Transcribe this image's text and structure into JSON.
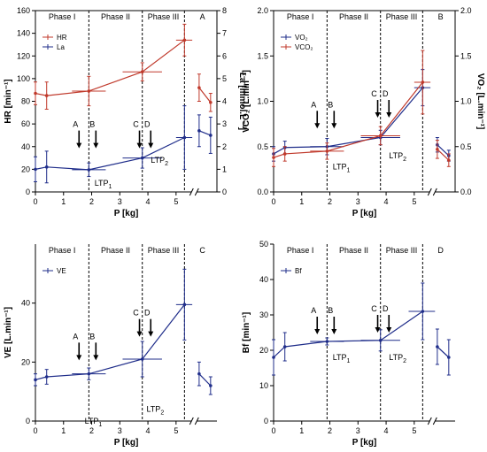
{
  "colors": {
    "blue": "#1f2d8a",
    "red": "#c0392b"
  },
  "chart_data": [
    {
      "panel": "A",
      "type": "line",
      "phases": [
        "Phase I",
        "Phase II",
        "Phase III"
      ],
      "dividers": [
        1.9,
        3.8,
        5.3
      ],
      "xlabel": "P [kg]",
      "ylabel": "HR [min⁻¹]",
      "y2label": "La [mmol.L⁻¹]",
      "xticks": [
        "0",
        "1",
        "2",
        "3",
        "4",
        "5"
      ],
      "yticks": [
        "0",
        "20",
        "40",
        "60",
        "80",
        "100",
        "120",
        "140",
        "160"
      ],
      "y2ticks": [
        "0",
        "1",
        "2",
        "3",
        "4",
        "5",
        "6",
        "7",
        "8"
      ],
      "ylim": [
        0,
        160
      ],
      "y2lim": [
        0,
        8
      ],
      "legend": [
        "HR",
        "La"
      ],
      "series": [
        {
          "name": "HR",
          "color": "red",
          "axis": "left",
          "points": [
            {
              "x": 0,
              "y": 87,
              "e": 10
            },
            {
              "x": 0.4,
              "y": 85,
              "e": 12
            },
            {
              "x": 1.9,
              "y": 89,
              "e": 13,
              "xe": 0.6
            },
            {
              "x": 3.8,
              "y": 106,
              "e": 8,
              "xe": 0.7
            },
            {
              "x": 5.3,
              "y": 134,
              "e": 14,
              "xe": 0.3
            }
          ],
          "recovery": [
            {
              "x": 5.9,
              "y": 92,
              "e": 12
            },
            {
              "x": 6.4,
              "y": 79,
              "e": 8
            }
          ]
        },
        {
          "name": "La",
          "color": "blue",
          "axis": "right",
          "points": [
            {
              "x": 0,
              "y": 1.0,
              "e": 0.55
            },
            {
              "x": 0.4,
              "y": 1.1,
              "e": 0.7
            },
            {
              "x": 1.9,
              "y": 0.98,
              "e": 0.3,
              "xe": 0.6
            },
            {
              "x": 3.8,
              "y": 1.5,
              "e": 0.45,
              "xe": 0.7
            },
            {
              "x": 5.3,
              "y": 2.4,
              "e": 1.4,
              "xe": 0.3
            }
          ],
          "recovery": [
            {
              "x": 5.9,
              "y": 2.7,
              "e": 0.7
            },
            {
              "x": 6.4,
              "y": 2.5,
              "e": 0.8
            }
          ]
        }
      ],
      "markers": [
        {
          "label": "A",
          "x": 1.55,
          "y": 37
        },
        {
          "label": "B",
          "x": 2.15,
          "y": 37
        },
        {
          "label": "C",
          "x": 3.7,
          "y": 37
        },
        {
          "label": "D",
          "x": 4.1,
          "y": 37
        }
      ],
      "annotations": [
        {
          "text": "LTP",
          "sub": "1",
          "x": 2.1,
          "y": 8
        },
        {
          "text": "LTP",
          "sub": "2",
          "x": 4.1,
          "y": 28
        }
      ]
    },
    {
      "panel": "B",
      "type": "line",
      "phases": [
        "Phase I",
        "Phase II",
        "Phase III"
      ],
      "dividers": [
        1.9,
        3.8,
        5.3
      ],
      "xlabel": "P [kg]",
      "ylabel": "VCO₂ [L.min⁻¹]",
      "y2label": "VO₂ [L.min⁻¹]",
      "xticks": [
        "0",
        "1",
        "2",
        "3",
        "4",
        "5"
      ],
      "yticks": [
        "0.0",
        "0.5",
        "1.0",
        "1.5",
        "2.0"
      ],
      "y2ticks": [
        "0.0",
        "0.5",
        "1.0",
        "1.5",
        "2.0"
      ],
      "ylim": [
        0,
        2
      ],
      "y2lim": [
        0,
        2
      ],
      "legend": [
        "VO₂",
        "VCO₂"
      ],
      "series": [
        {
          "name": "VO₂",
          "color": "blue",
          "axis": "right",
          "points": [
            {
              "x": 0,
              "y": 0.42,
              "e": 0.08
            },
            {
              "x": 0.4,
              "y": 0.49,
              "e": 0.07
            },
            {
              "x": 1.9,
              "y": 0.5,
              "e": 0.09,
              "xe": 0.6
            },
            {
              "x": 3.8,
              "y": 0.6,
              "e": 0.08,
              "xe": 0.7
            },
            {
              "x": 5.3,
              "y": 1.15,
              "e": 0.2,
              "xe": 0.3
            }
          ],
          "recovery": [
            {
              "x": 5.9,
              "y": 0.52,
              "e": 0.08
            },
            {
              "x": 6.4,
              "y": 0.4,
              "e": 0.06
            }
          ]
        },
        {
          "name": "VCO₂",
          "color": "red",
          "axis": "left",
          "points": [
            {
              "x": 0,
              "y": 0.38,
              "e": 0.1
            },
            {
              "x": 0.4,
              "y": 0.42,
              "e": 0.08
            },
            {
              "x": 1.9,
              "y": 0.45,
              "e": 0.09,
              "xe": 0.6
            },
            {
              "x": 3.8,
              "y": 0.62,
              "e": 0.1,
              "xe": 0.7
            },
            {
              "x": 5.3,
              "y": 1.21,
              "e": 0.35,
              "xe": 0.3
            }
          ],
          "recovery": [
            {
              "x": 5.9,
              "y": 0.47,
              "e": 0.1
            },
            {
              "x": 6.4,
              "y": 0.35,
              "e": 0.07
            }
          ]
        }
      ],
      "markers": [
        {
          "label": "A",
          "x": 1.55,
          "y": 0.68
        },
        {
          "label": "B",
          "x": 2.15,
          "y": 0.68
        },
        {
          "label": "C",
          "x": 3.7,
          "y": 0.8
        },
        {
          "label": "D",
          "x": 4.1,
          "y": 0.8
        }
      ],
      "annotations": [
        {
          "text": "LTP",
          "sub": "1",
          "x": 2.1,
          "y": 0.28
        },
        {
          "text": "LTP",
          "sub": "2",
          "x": 4.1,
          "y": 0.4
        }
      ]
    },
    {
      "panel": "C",
      "type": "line",
      "phases": [
        "Phase I",
        "Phase II",
        "Phase III"
      ],
      "dividers": [
        1.9,
        3.8,
        5.3
      ],
      "xlabel": "P [kg]",
      "ylabel": "VE [L.min⁻¹]",
      "xticks": [
        "0",
        "1",
        "2",
        "3",
        "4",
        "5"
      ],
      "yticks": [
        "0",
        "20",
        "40"
      ],
      "ylim": [
        0,
        60
      ],
      "legend": [
        "VE"
      ],
      "series": [
        {
          "name": "VE",
          "color": "blue",
          "axis": "left",
          "points": [
            {
              "x": 0,
              "y": 14,
              "e": 2
            },
            {
              "x": 0.4,
              "y": 15,
              "e": 2.5
            },
            {
              "x": 1.9,
              "y": 16,
              "e": 2,
              "xe": 0.6
            },
            {
              "x": 3.8,
              "y": 21,
              "e": 6,
              "xe": 0.7
            },
            {
              "x": 5.3,
              "y": 39.5,
              "e": 12,
              "xe": 0.3
            }
          ],
          "recovery": [
            {
              "x": 5.9,
              "y": 16,
              "e": 4
            },
            {
              "x": 6.4,
              "y": 12,
              "e": 3
            }
          ]
        }
      ],
      "markers": [
        {
          "label": "A",
          "x": 1.55,
          "y": 20
        },
        {
          "label": "B",
          "x": 2.15,
          "y": 20
        },
        {
          "label": "C",
          "x": 3.7,
          "y": 28
        },
        {
          "label": "D",
          "x": 4.1,
          "y": 28
        }
      ],
      "annotations": [
        {
          "text": "LTP",
          "sub": "1",
          "x": 1.75,
          "y": 0
        },
        {
          "text": "LTP",
          "sub": "2",
          "x": 3.95,
          "y": 4
        }
      ]
    },
    {
      "panel": "D",
      "type": "line",
      "phases": [
        "Phase I",
        "Phase II",
        "Phase III"
      ],
      "dividers": [
        1.9,
        3.8,
        5.3
      ],
      "xlabel": "P [kg]",
      "ylabel": "Bf [min⁻¹]",
      "xticks": [
        "0",
        "1",
        "2",
        "3",
        "4",
        "5"
      ],
      "yticks": [
        "0",
        "10",
        "20",
        "30",
        "40",
        "50"
      ],
      "ylim": [
        0,
        50
      ],
      "legend": [
        "Bf"
      ],
      "series": [
        {
          "name": "Bf",
          "color": "blue",
          "axis": "left",
          "points": [
            {
              "x": 0,
              "y": 18,
              "e": 5
            },
            {
              "x": 0.4,
              "y": 21,
              "e": 4
            },
            {
              "x": 1.9,
              "y": 22.5,
              "e": 1,
              "xe": 0.6
            },
            {
              "x": 3.8,
              "y": 22.8,
              "e": 3,
              "xe": 0.7
            },
            {
              "x": 5.3,
              "y": 31,
              "e": 8,
              "xe": 0.5
            }
          ],
          "recovery": [
            {
              "x": 5.9,
              "y": 21,
              "e": 5
            },
            {
              "x": 6.4,
              "y": 18,
              "e": 5
            }
          ]
        }
      ],
      "markers": [
        {
          "label": "A",
          "x": 1.55,
          "y": 24
        },
        {
          "label": "B",
          "x": 2.15,
          "y": 24
        },
        {
          "label": "C",
          "x": 3.7,
          "y": 24.5
        },
        {
          "label": "D",
          "x": 4.1,
          "y": 24.5
        }
      ],
      "annotations": [
        {
          "text": "LTP",
          "sub": "1",
          "x": 2.1,
          "y": 18
        },
        {
          "text": "LTP",
          "sub": "2",
          "x": 4.1,
          "y": 18
        }
      ]
    }
  ]
}
